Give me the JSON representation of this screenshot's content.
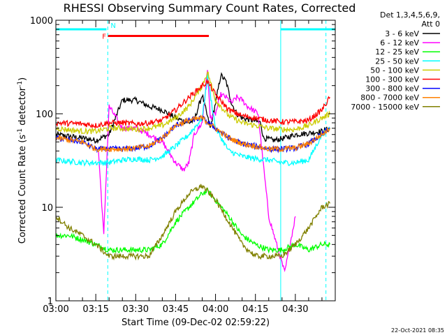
{
  "chart_data": {
    "type": "line",
    "title": "RHESSI Observing Summary Count Rates, Corrected",
    "xlabel": "Start Time (09-Dec-02 02:59:22)",
    "ylabel": "Corrected Count Rate (s⁻¹ detector⁻¹)",
    "ylabel_parts": {
      "base": "Corrected Count Rate (s",
      "sup1": "-1",
      "mid": " detector",
      "sup2": "-1",
      "end": ")"
    },
    "yscale": "log",
    "ylim": [
      1,
      1000
    ],
    "xlim_min": [
      0,
      105
    ],
    "x_ticks": [
      {
        "min": 0,
        "label": "03:00"
      },
      {
        "min": 15,
        "label": "03:15"
      },
      {
        "min": 30,
        "label": "03:30"
      },
      {
        "min": 45,
        "label": "03:45"
      },
      {
        "min": 60,
        "label": "04:00"
      },
      {
        "min": 75,
        "label": "04:15"
      },
      {
        "min": 90,
        "label": "04:30"
      }
    ],
    "y_ticks": [
      {
        "value": 1,
        "label": "1"
      },
      {
        "value": 10,
        "label": "10"
      },
      {
        "value": 100,
        "label": "100"
      },
      {
        "value": 1000,
        "label": "1000"
      }
    ],
    "legend_header": [
      "Det 1,3,4,5,6,9,",
      "Att 0"
    ],
    "series": [
      {
        "name": "3 - 6 keV",
        "color": "#000000",
        "x": [
          0,
          10,
          15,
          20,
          25,
          30,
          35,
          40,
          45,
          50,
          52,
          55,
          58,
          60,
          62,
          64,
          66,
          68,
          70,
          74,
          77,
          78,
          82,
          86,
          90,
          95,
          100,
          103
        ],
        "values": [
          60,
          55,
          52,
          60,
          140,
          140,
          120,
          110,
          90,
          80,
          85,
          160,
          70,
          130,
          260,
          220,
          130,
          100,
          90,
          85,
          80,
          55,
          52,
          55,
          60,
          62,
          65,
          70
        ]
      },
      {
        "name": "6 - 12 keV",
        "color": "#ff00ff",
        "x": [
          16,
          18,
          20,
          25,
          30,
          35,
          40,
          45,
          48,
          50,
          52,
          55,
          57,
          58,
          60,
          62,
          64,
          66,
          68,
          70,
          72,
          74,
          76,
          80,
          82,
          86,
          90
        ],
        "values": [
          40,
          5,
          120,
          70,
          70,
          60,
          50,
          30,
          25,
          30,
          60,
          80,
          300,
          90,
          100,
          160,
          150,
          130,
          150,
          140,
          120,
          110,
          100,
          8,
          5,
          2,
          8
        ]
      },
      {
        "name": "12 - 25 keV",
        "color": "#00ff00",
        "x": [
          0,
          5,
          10,
          15,
          20,
          25,
          30,
          35,
          40,
          45,
          50,
          55,
          57,
          60,
          65,
          70,
          75,
          80,
          85,
          90,
          95,
          100,
          103
        ],
        "values": [
          5,
          5,
          4.5,
          4,
          3.5,
          3.5,
          3.5,
          3.5,
          4,
          7,
          10,
          14,
          15,
          12,
          8,
          5,
          4,
          3.5,
          3.5,
          4,
          3.5,
          4,
          4
        ]
      },
      {
        "name": "25 - 50 keV",
        "color": "#00ffff",
        "x": [
          0,
          10,
          15,
          20,
          25,
          30,
          35,
          40,
          45,
          50,
          55,
          57,
          60,
          65,
          70,
          75,
          80,
          85,
          90,
          95,
          100,
          103
        ],
        "values": [
          32,
          30,
          30,
          30,
          32,
          33,
          32,
          35,
          45,
          60,
          90,
          250,
          70,
          40,
          35,
          33,
          32,
          30,
          30,
          32,
          60,
          70
        ]
      },
      {
        "name": "50 - 100 keV",
        "color": "#cccc00",
        "x": [
          0,
          10,
          15,
          20,
          25,
          30,
          35,
          40,
          45,
          50,
          55,
          57,
          60,
          65,
          70,
          75,
          80,
          85,
          90,
          95,
          100,
          103
        ],
        "values": [
          70,
          65,
          65,
          70,
          70,
          68,
          70,
          75,
          90,
          120,
          200,
          280,
          140,
          95,
          80,
          75,
          70,
          68,
          68,
          75,
          90,
          100
        ]
      },
      {
        "name": "100 - 300 keV",
        "color": "#ff0000",
        "x": [
          0,
          10,
          15,
          20,
          25,
          30,
          35,
          40,
          45,
          50,
          55,
          57,
          60,
          65,
          70,
          75,
          80,
          85,
          90,
          95,
          100,
          103
        ],
        "values": [
          80,
          78,
          75,
          80,
          80,
          78,
          80,
          85,
          110,
          150,
          200,
          220,
          160,
          110,
          95,
          90,
          85,
          82,
          82,
          85,
          110,
          150
        ]
      },
      {
        "name": "300 - 800 keV",
        "color": "#0000ff",
        "x": [
          0,
          10,
          15,
          20,
          25,
          30,
          35,
          40,
          45,
          50,
          55,
          60,
          65,
          70,
          75,
          80,
          85,
          90,
          95,
          100,
          103
        ],
        "values": [
          55,
          50,
          42,
          42,
          42,
          43,
          45,
          55,
          75,
          85,
          90,
          70,
          55,
          48,
          45,
          42,
          42,
          43,
          48,
          60,
          70
        ]
      },
      {
        "name": "800 - 7000 keV",
        "color": "#ff8000",
        "x": [
          0,
          10,
          15,
          20,
          25,
          30,
          35,
          40,
          45,
          50,
          55,
          60,
          65,
          70,
          75,
          80,
          85,
          90,
          95,
          100,
          103
        ],
        "values": [
          55,
          50,
          42,
          42,
          42,
          43,
          45,
          55,
          75,
          85,
          90,
          70,
          55,
          48,
          45,
          42,
          42,
          43,
          48,
          60,
          70
        ]
      },
      {
        "name": "7000 - 15000 keV",
        "color": "#808000",
        "x": [
          0,
          5,
          10,
          15,
          20,
          25,
          30,
          35,
          40,
          45,
          50,
          55,
          60,
          65,
          70,
          75,
          80,
          85,
          90,
          95,
          100,
          103
        ],
        "values": [
          8,
          6,
          5,
          4,
          3,
          3,
          3,
          3,
          5,
          9,
          14,
          17,
          12,
          7,
          4,
          3,
          3,
          3,
          4,
          6,
          10,
          11
        ]
      }
    ],
    "annotations": {
      "flags": [
        {
          "name": "N",
          "color": "#00ffff",
          "segments": [
            [
              0,
              19
            ],
            [
              84.5,
              105
            ]
          ],
          "y": 800
        },
        {
          "name": "F",
          "color": "#ff0000",
          "segments": [
            [
              19.5,
              57.5
            ]
          ],
          "y": 680
        }
      ],
      "vertical_lines": [
        {
          "x": 19.5,
          "color": "#00ffff",
          "style": "dashed"
        },
        {
          "x": 84.5,
          "color": "#00ffff",
          "style": "solid"
        },
        {
          "x": 101.5,
          "color": "#00ffff",
          "style": "dashed"
        }
      ]
    },
    "legend_placement": "right"
  },
  "footer": "22-Oct-2021 08:35"
}
